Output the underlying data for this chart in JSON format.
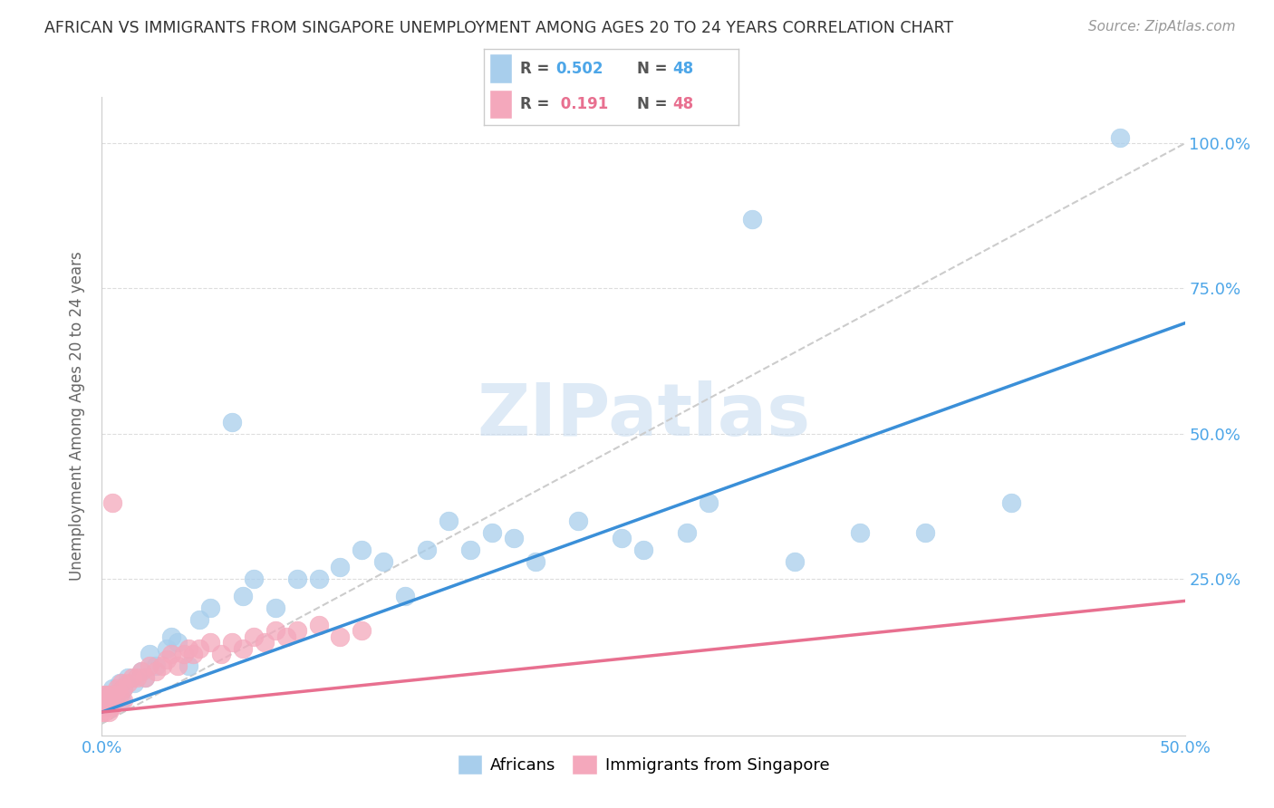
{
  "title": "AFRICAN VS IMMIGRANTS FROM SINGAPORE UNEMPLOYMENT AMONG AGES 20 TO 24 YEARS CORRELATION CHART",
  "source": "Source: ZipAtlas.com",
  "ylabel_label": "Unemployment Among Ages 20 to 24 years",
  "xlim": [
    0.0,
    0.5
  ],
  "ylim": [
    -0.02,
    1.08
  ],
  "legend_r_african": "0.502",
  "legend_r_singapore": "0.191",
  "legend_n": "48",
  "african_color": "#A8CEEC",
  "singapore_color": "#F4A8BC",
  "african_line_color": "#3A8FD8",
  "singapore_line_color": "#E87090",
  "watermark_color": "#C8DCF0",
  "background_color": "#FFFFFF",
  "african_x": [
    0.002,
    0.003,
    0.004,
    0.005,
    0.006,
    0.007,
    0.008,
    0.009,
    0.01,
    0.012,
    0.015,
    0.018,
    0.02,
    0.022,
    0.025,
    0.03,
    0.032,
    0.035,
    0.04,
    0.045,
    0.05,
    0.06,
    0.065,
    0.07,
    0.08,
    0.09,
    0.1,
    0.11,
    0.12,
    0.13,
    0.14,
    0.15,
    0.16,
    0.17,
    0.18,
    0.19,
    0.2,
    0.22,
    0.24,
    0.25,
    0.27,
    0.28,
    0.3,
    0.32,
    0.35,
    0.38,
    0.42,
    0.47
  ],
  "african_y": [
    0.04,
    0.05,
    0.03,
    0.06,
    0.04,
    0.05,
    0.07,
    0.04,
    0.06,
    0.08,
    0.07,
    0.09,
    0.08,
    0.12,
    0.1,
    0.13,
    0.15,
    0.14,
    0.1,
    0.18,
    0.2,
    0.52,
    0.22,
    0.25,
    0.2,
    0.25,
    0.25,
    0.27,
    0.3,
    0.28,
    0.22,
    0.3,
    0.35,
    0.3,
    0.33,
    0.32,
    0.28,
    0.35,
    0.32,
    0.3,
    0.33,
    0.38,
    0.87,
    0.28,
    0.33,
    0.33,
    0.38,
    1.01
  ],
  "singapore_x": [
    0.0,
    0.0,
    0.001,
    0.001,
    0.001,
    0.002,
    0.002,
    0.002,
    0.003,
    0.003,
    0.004,
    0.004,
    0.005,
    0.005,
    0.006,
    0.007,
    0.008,
    0.009,
    0.01,
    0.01,
    0.012,
    0.014,
    0.016,
    0.018,
    0.02,
    0.022,
    0.025,
    0.028,
    0.03,
    0.032,
    0.035,
    0.038,
    0.04,
    0.042,
    0.045,
    0.05,
    0.055,
    0.06,
    0.065,
    0.07,
    0.075,
    0.08,
    0.085,
    0.09,
    0.1,
    0.11,
    0.12,
    0.005
  ],
  "singapore_y": [
    0.02,
    0.04,
    0.03,
    0.05,
    0.02,
    0.03,
    0.05,
    0.04,
    0.02,
    0.04,
    0.03,
    0.05,
    0.03,
    0.05,
    0.04,
    0.06,
    0.05,
    0.07,
    0.04,
    0.06,
    0.07,
    0.08,
    0.08,
    0.09,
    0.08,
    0.1,
    0.09,
    0.1,
    0.11,
    0.12,
    0.1,
    0.12,
    0.13,
    0.12,
    0.13,
    0.14,
    0.12,
    0.14,
    0.13,
    0.15,
    0.14,
    0.16,
    0.15,
    0.16,
    0.17,
    0.15,
    0.16,
    0.38
  ]
}
